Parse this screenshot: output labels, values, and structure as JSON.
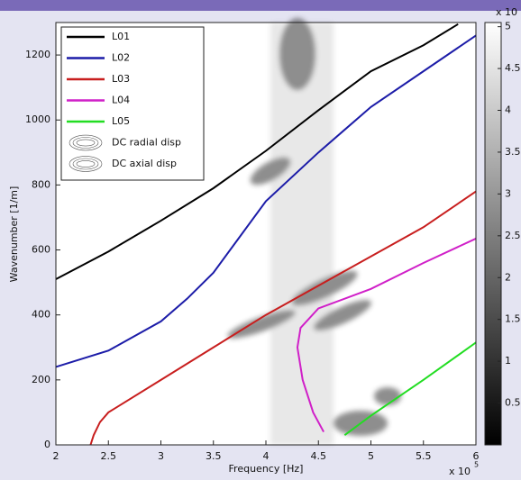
{
  "chart_data": {
    "type": "line",
    "x_label": "Frequency [Hz]",
    "y_label": "Wavenumber [1/m]",
    "x_multiplier": "x 10",
    "x_exponent": "5",
    "xlim": [
      2,
      6
    ],
    "xticks": [
      2,
      2.5,
      3,
      3.5,
      4,
      4.5,
      5,
      5.5,
      6
    ],
    "ylim": [
      0,
      1300
    ],
    "yticks": [
      0,
      200,
      400,
      600,
      800,
      1000,
      1200
    ],
    "colorbar_multiplier": "x 10",
    "clim": [
      0,
      5.05
    ],
    "cticks": [
      0.5,
      1,
      1.5,
      2,
      2.5,
      3,
      3.5,
      4,
      4.5,
      5
    ],
    "contour_legend": [
      "DC radial disp",
      "DC axial disp"
    ],
    "series": [
      {
        "name": "L01",
        "color": "#000000",
        "x": [
          2,
          2.5,
          3,
          3.5,
          4,
          4.5,
          5,
          5.5,
          5.83
        ],
        "values": [
          510,
          595,
          690,
          790,
          905,
          1030,
          1150,
          1230,
          1295
        ]
      },
      {
        "name": "L02",
        "color": "#1c1ca8",
        "x": [
          2,
          2.5,
          3,
          3.25,
          3.5,
          3.75,
          4,
          4.5,
          5,
          5.5,
          6
        ],
        "values": [
          240,
          290,
          380,
          450,
          530,
          640,
          750,
          900,
          1040,
          1150,
          1260
        ]
      },
      {
        "name": "L03",
        "color": "#c81e1e",
        "x": [
          2.33,
          2.36,
          2.42,
          2.5,
          3,
          3.5,
          4,
          4.5,
          5,
          5.5,
          6
        ],
        "values": [
          0,
          30,
          70,
          100,
          200,
          300,
          400,
          490,
          580,
          670,
          780
        ]
      },
      {
        "name": "L04",
        "color": "#d020c8",
        "x": [
          4.55,
          4.45,
          4.35,
          4.3,
          4.33,
          4.5,
          5,
          5.5,
          6
        ],
        "values": [
          40,
          100,
          200,
          300,
          360,
          420,
          480,
          560,
          635
        ]
      },
      {
        "name": "L05",
        "color": "#22dd22",
        "x": [
          4.75,
          5,
          5.5,
          6
        ],
        "values": [
          30,
          90,
          200,
          315
        ]
      }
    ]
  }
}
